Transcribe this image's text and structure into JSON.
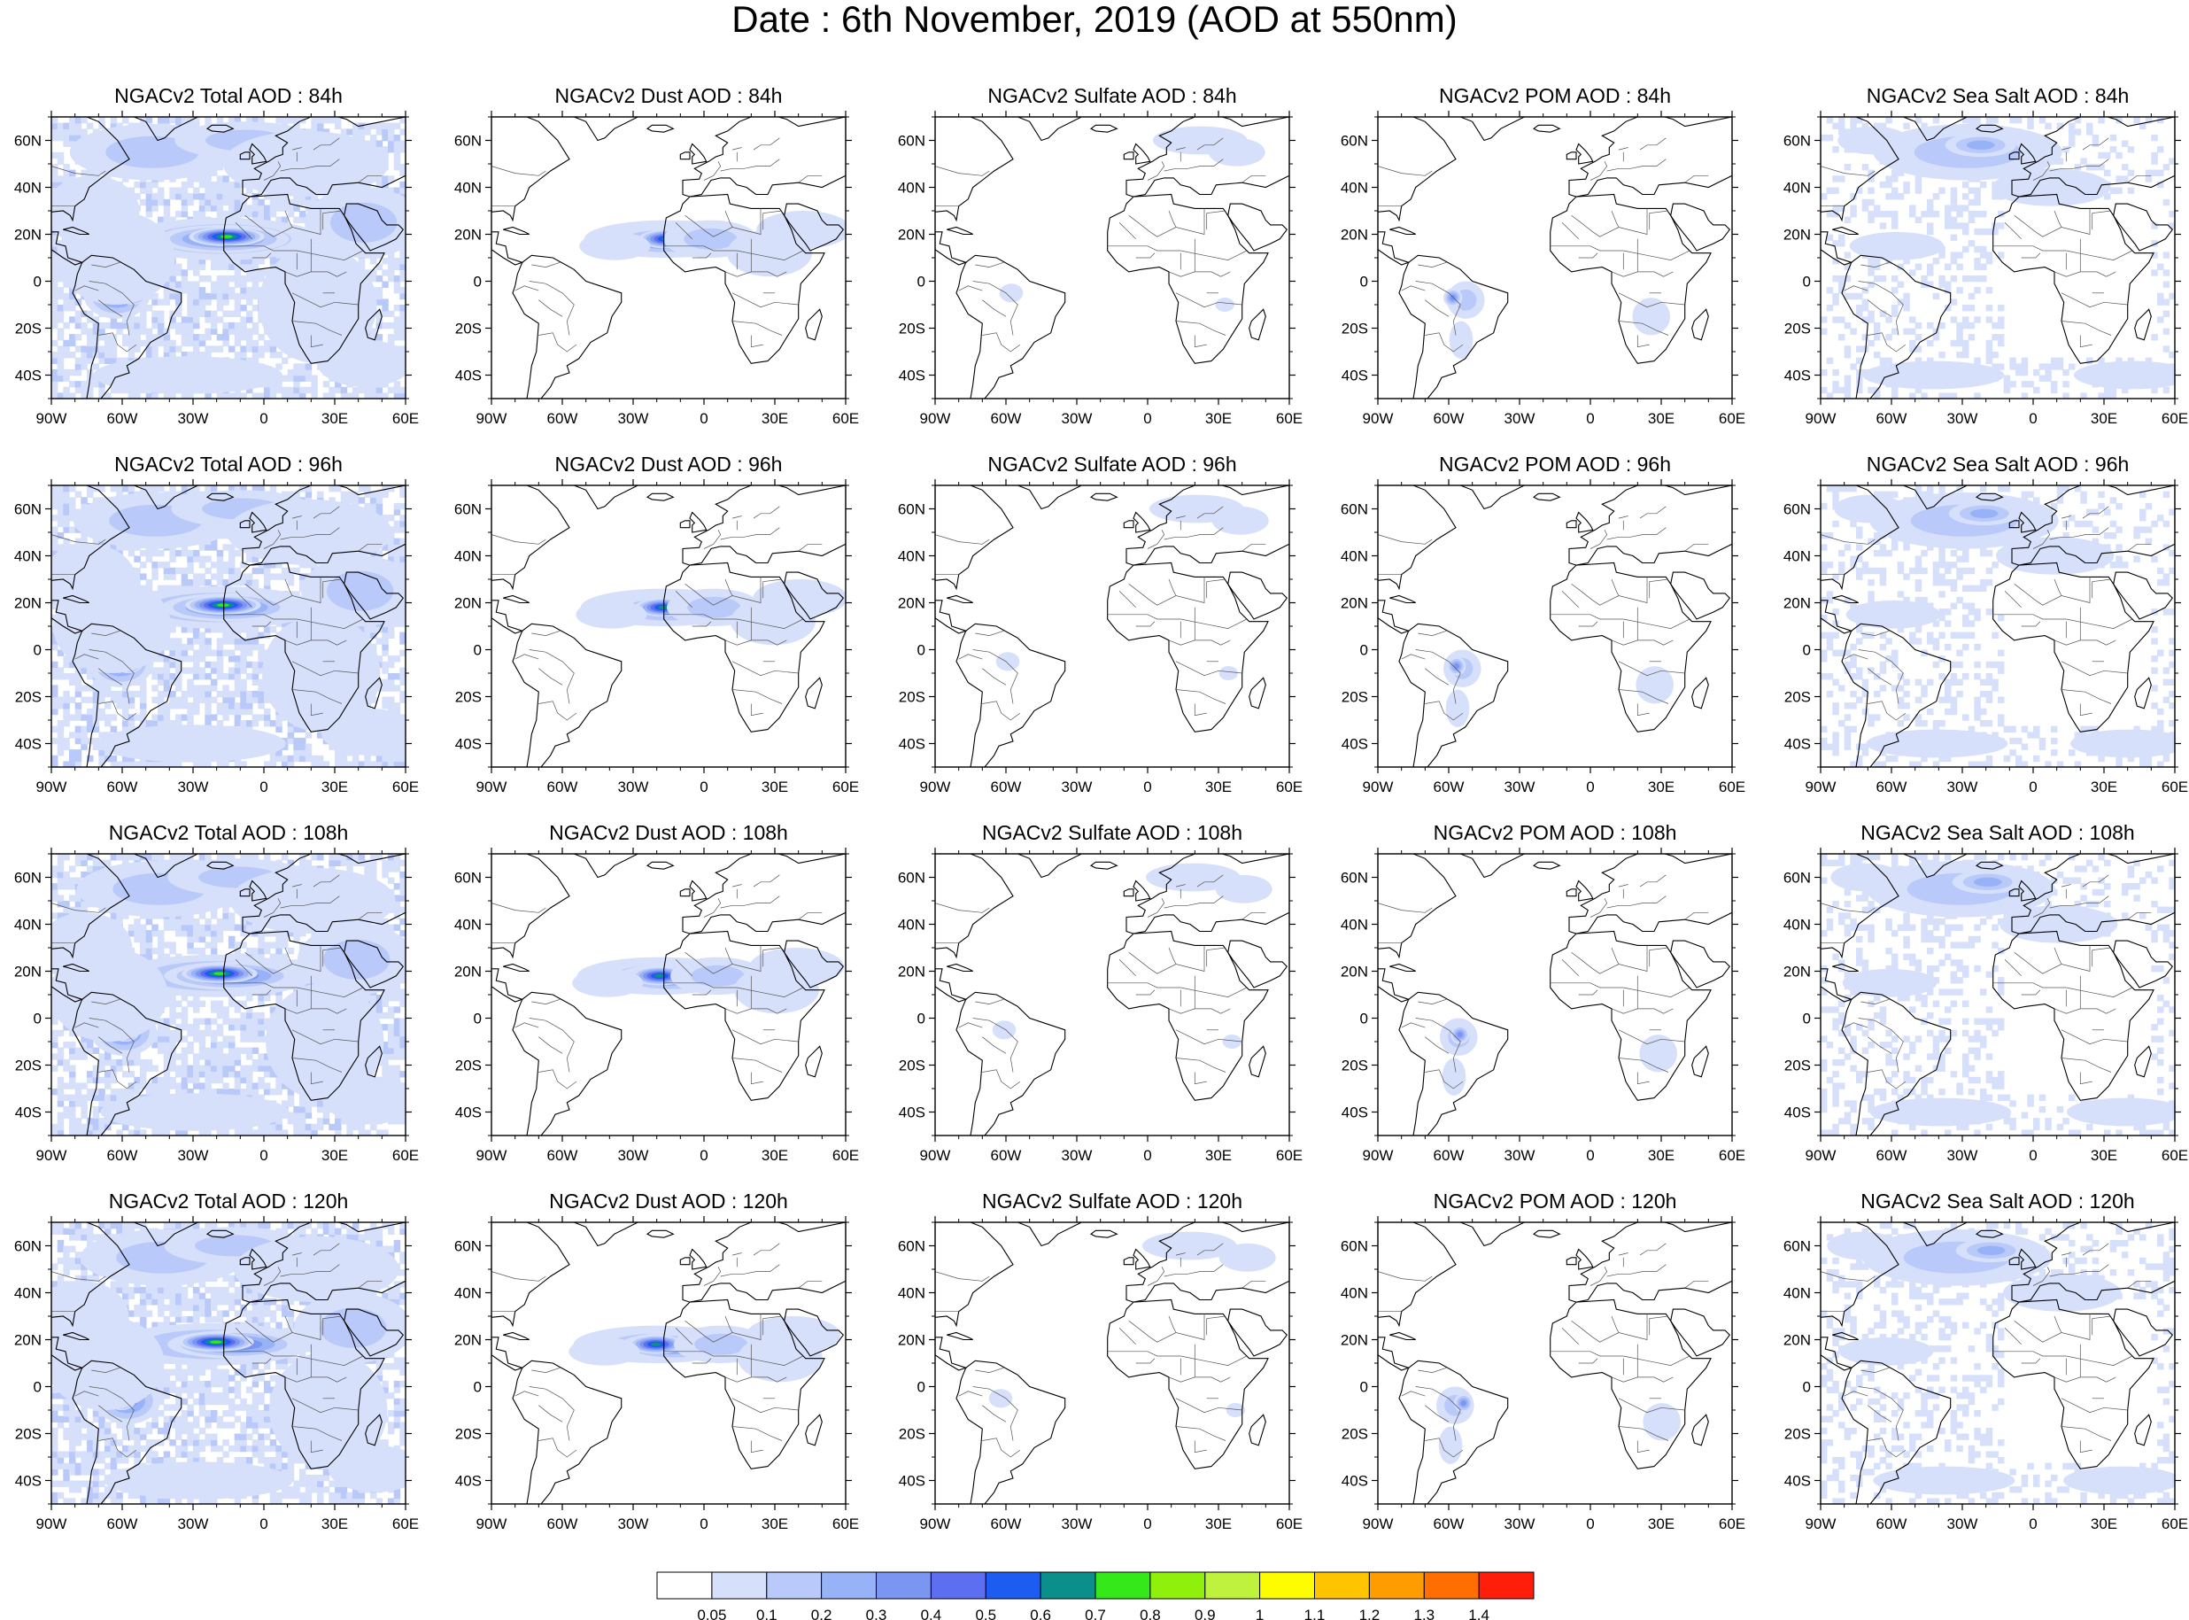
{
  "title": "Date : 6th November, 2019 (AOD at 550nm)",
  "lon_ticks": [
    "90W",
    "60W",
    "30W",
    "0",
    "30E",
    "60E"
  ],
  "lat_ticks": [
    "60N",
    "40N",
    "20N",
    "0",
    "20S",
    "40S"
  ],
  "rows": [
    {
      "panels": [
        {
          "title": "NGACv2 Total AOD : 84h",
          "species": "total"
        },
        {
          "title": "NGACv2 Dust AOD : 84h",
          "species": "dust"
        },
        {
          "title": "NGACv2 Sulfate AOD : 84h",
          "species": "sulfate"
        },
        {
          "title": "NGACv2 POM AOD : 84h",
          "species": "pom"
        },
        {
          "title": "NGACv2 Sea Salt AOD : 84h",
          "species": "seasalt"
        }
      ]
    },
    {
      "panels": [
        {
          "title": "NGACv2 Total AOD : 96h",
          "species": "total"
        },
        {
          "title": "NGACv2 Dust AOD : 96h",
          "species": "dust"
        },
        {
          "title": "NGACv2 Sulfate AOD : 96h",
          "species": "sulfate"
        },
        {
          "title": "NGACv2 POM AOD : 96h",
          "species": "pom"
        },
        {
          "title": "NGACv2 Sea Salt AOD : 96h",
          "species": "seasalt"
        }
      ]
    },
    {
      "panels": [
        {
          "title": "NGACv2 Total AOD : 108h",
          "species": "total"
        },
        {
          "title": "NGACv2 Dust AOD : 108h",
          "species": "dust"
        },
        {
          "title": "NGACv2 Sulfate AOD : 108h",
          "species": "sulfate"
        },
        {
          "title": "NGACv2 POM AOD : 108h",
          "species": "pom"
        },
        {
          "title": "NGACv2 Sea Salt AOD : 108h",
          "species": "seasalt"
        }
      ]
    },
    {
      "panels": [
        {
          "title": "NGACv2 Total AOD : 120h",
          "species": "total"
        },
        {
          "title": "NGACv2 Dust AOD : 120h",
          "species": "dust"
        },
        {
          "title": "NGACv2 Sulfate AOD : 120h",
          "species": "sulfate"
        },
        {
          "title": "NGACv2 POM AOD : 120h",
          "species": "pom"
        },
        {
          "title": "NGACv2 Sea Salt  AOD : 120h",
          "species": "seasalt"
        }
      ]
    }
  ],
  "colorbar": {
    "colors": [
      "#ffffff",
      "#d7e0fb",
      "#b9c9f9",
      "#98b2f7",
      "#7b96f2",
      "#5d6ef0",
      "#1d5cf0",
      "#0a8f8a",
      "#35e81a",
      "#8ff00b",
      "#bff23d",
      "#fdfd00",
      "#ffc400",
      "#ff9c00",
      "#ff6e00",
      "#ff1e0a"
    ],
    "labels": [
      "0.05",
      "0.1",
      "0.2",
      "0.3",
      "0.4",
      "0.5",
      "0.6",
      "0.7",
      "0.8",
      "0.9",
      "1",
      "1.1",
      "1.2",
      "1.3",
      "1.4"
    ]
  },
  "map_colors": {
    "coast": "#000000",
    "border": "#555555",
    "frame": "#000000"
  }
}
